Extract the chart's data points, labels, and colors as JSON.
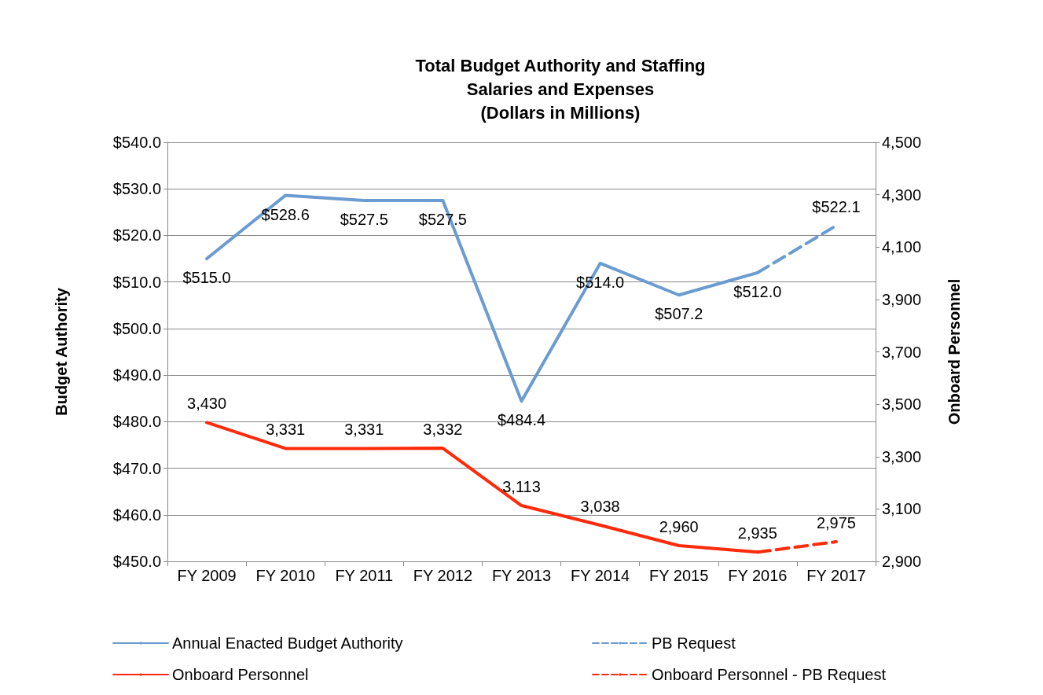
{
  "chart_data": {
    "type": "line",
    "title": "Total Budget Authority and Staffing\nSalaries and Expenses\n(Dollars in Millions)",
    "categories": [
      "FY 2009",
      "FY 2010",
      "FY 2011",
      "FY 2012",
      "FY 2013",
      "FY 2014",
      "FY 2015",
      "FY 2016",
      "FY 2017"
    ],
    "ylabel": "Budget Authority",
    "y2label": "Onboard Personnel",
    "ylim": [
      450,
      540
    ],
    "yticks": [
      {
        "value": 450,
        "label": "$450.0"
      },
      {
        "value": 460,
        "label": "$460.0"
      },
      {
        "value": 470,
        "label": "$470.0"
      },
      {
        "value": 480,
        "label": "$480.0"
      },
      {
        "value": 490,
        "label": "$490.0"
      },
      {
        "value": 500,
        "label": "$500.0"
      },
      {
        "value": 510,
        "label": "$510.0"
      },
      {
        "value": 520,
        "label": "$520.0"
      },
      {
        "value": 530,
        "label": "$530.0"
      },
      {
        "value": 540,
        "label": "$540.0"
      }
    ],
    "y2lim": [
      2900,
      4500
    ],
    "y2ticks": [
      {
        "value": 2900,
        "label": "2,900"
      },
      {
        "value": 3100,
        "label": "3,100"
      },
      {
        "value": 3300,
        "label": "3,300"
      },
      {
        "value": 3500,
        "label": "3,500"
      },
      {
        "value": 3700,
        "label": "3,700"
      },
      {
        "value": 3900,
        "label": "3,900"
      },
      {
        "value": 4100,
        "label": "4,100"
      },
      {
        "value": 4300,
        "label": "4,300"
      },
      {
        "value": 4500,
        "label": "4,500"
      }
    ],
    "series": [
      {
        "name": "Annual Enacted Budget Authority",
        "color": "#6a9bd1",
        "line_style": "solid",
        "values": [
          515.0,
          528.6,
          527.5,
          527.5,
          484.4,
          514.0,
          507.2,
          512.0,
          null
        ],
        "value_labels": [
          "$515.0",
          "$528.6",
          "$527.5",
          "$527.5",
          "$484.4",
          "$514.0",
          "$507.2",
          "$512.0",
          null
        ]
      },
      {
        "name": "PB Request",
        "color": "#6a9bd1",
        "line_style": "dashed",
        "values": [
          null,
          null,
          null,
          null,
          null,
          null,
          null,
          512.0,
          522.1
        ],
        "value_labels": [
          null,
          null,
          null,
          null,
          null,
          null,
          null,
          null,
          "$522.1"
        ]
      },
      {
        "name": "Onboard Personnel",
        "color": "#ff2a0a",
        "line_style": "solid",
        "axis": "y2",
        "values": [
          3430,
          3331,
          3331,
          3332,
          3113,
          3038,
          2960,
          2935,
          null
        ],
        "value_labels": [
          "3,430",
          "3,331",
          "3,331",
          "3,332",
          "3,113",
          "3,038",
          "2,960",
          "2,935",
          null
        ]
      },
      {
        "name": "Onboard Personnel - PB Request",
        "color": "#ff2a0a",
        "line_style": "dashed",
        "axis": "y2",
        "values": [
          null,
          null,
          null,
          null,
          null,
          null,
          null,
          2935,
          2975
        ],
        "value_labels": [
          null,
          null,
          null,
          null,
          null,
          null,
          null,
          null,
          "2,975"
        ]
      }
    ],
    "grid": "y",
    "legend": "bottom",
    "marker": "none"
  }
}
